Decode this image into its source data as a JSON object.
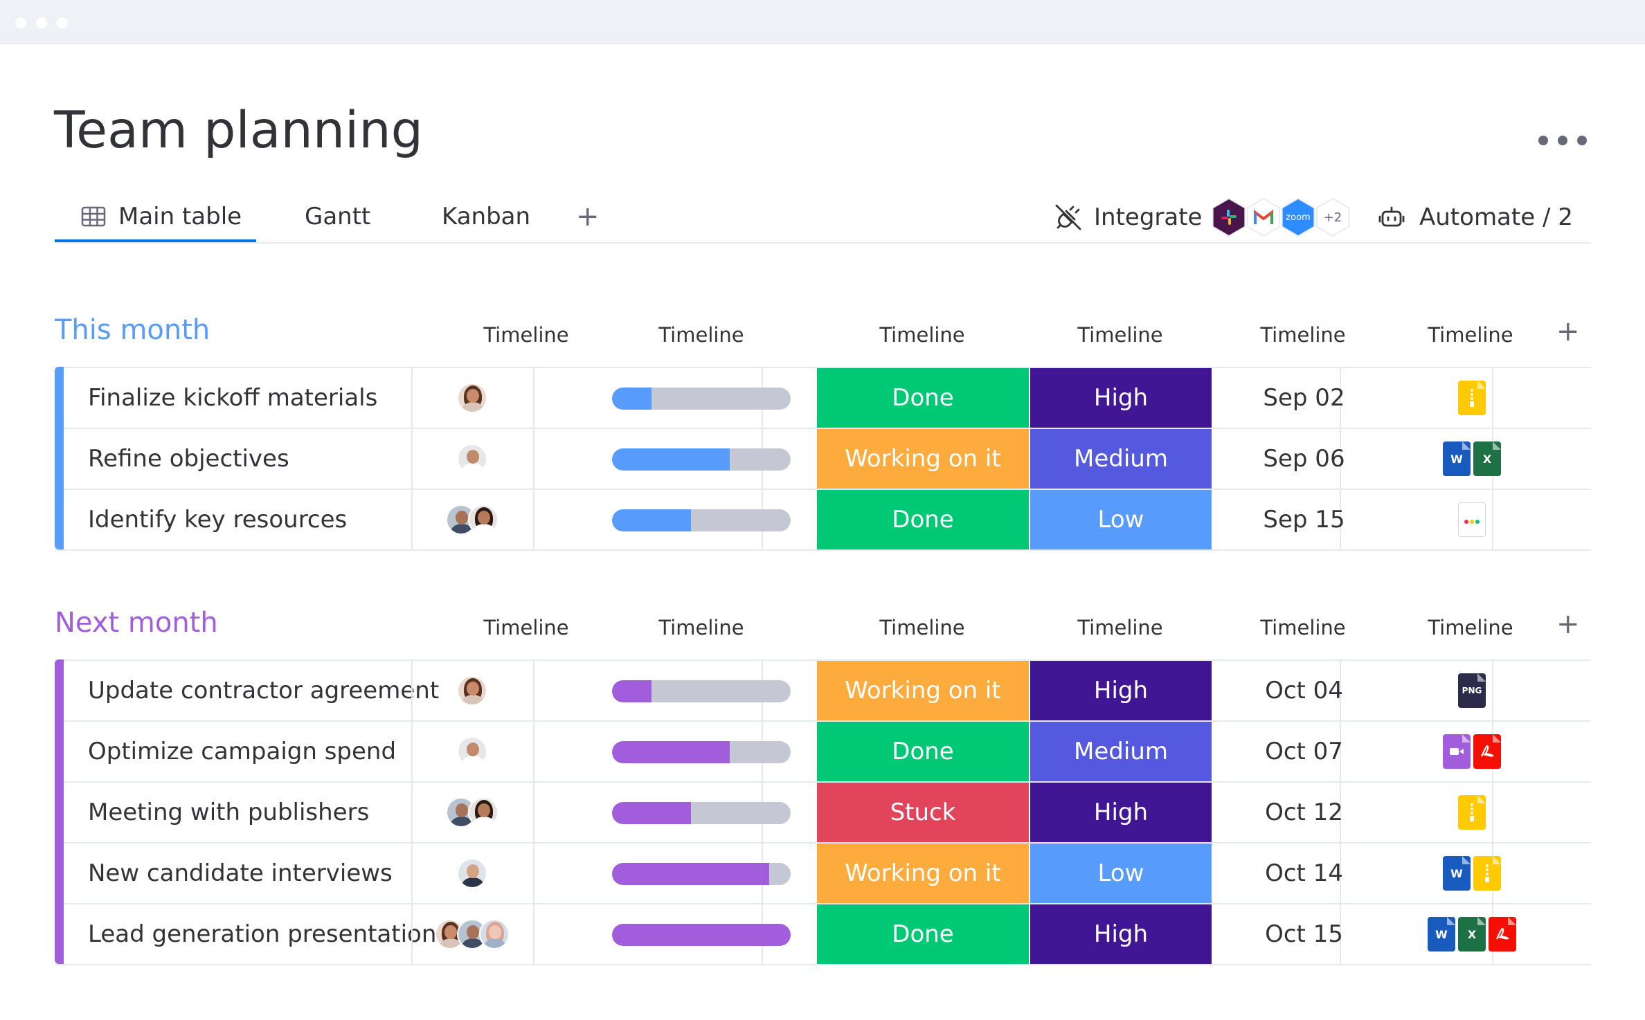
{
  "app": {
    "title": "Team planning"
  },
  "tabs": [
    {
      "label": "Main table",
      "active": true
    },
    {
      "label": "Gantt",
      "active": false
    },
    {
      "label": "Kanban",
      "active": false
    }
  ],
  "toolbar": {
    "integrate_label": "Integrate",
    "integration_logos": [
      "slack",
      "gmail",
      "zoom"
    ],
    "zoom_text": "zoom",
    "more_integrations": "+2",
    "automate_label": "Automate / 2"
  },
  "column_headers": [
    "Timeline",
    "Timeline",
    "Timeline",
    "Timeline",
    "Timeline",
    "Timeline"
  ],
  "colors": {
    "this_month": "#579bfc",
    "next_month": "#a25ddc",
    "done": "#00c875",
    "working": "#fdab3d",
    "stuck": "#e2445c",
    "high": "#401694",
    "medium": "#5559df",
    "low": "#579bfc"
  },
  "groups": [
    {
      "title": "This month",
      "color": "#579bfc",
      "rows": [
        {
          "task": "Finalize kickoff materials",
          "people": [
            "woman"
          ],
          "progress": 0.22,
          "status": "Done",
          "status_color": "#00c875",
          "priority": "High",
          "priority_color": "#401694",
          "date": "Sep 02",
          "files": [
            "zip"
          ]
        },
        {
          "task": "Refine objectives",
          "people": [
            "man"
          ],
          "progress": 0.66,
          "status": "Working on it",
          "status_color": "#fdab3d",
          "priority": "Medium",
          "priority_color": "#5559df",
          "date": "Sep 06",
          "files": [
            "word",
            "excel"
          ]
        },
        {
          "task": "Identify key resources",
          "people": [
            "man2",
            "woman2"
          ],
          "progress": 0.44,
          "status": "Done",
          "status_color": "#00c875",
          "priority": "Low",
          "priority_color": "#579bfc",
          "date": "Sep 15",
          "files": [
            "monday"
          ]
        }
      ]
    },
    {
      "title": "Next month",
      "color": "#a25ddc",
      "rows": [
        {
          "task": "Update contractor agreement",
          "people": [
            "woman"
          ],
          "progress": 0.22,
          "status": "Working on it",
          "status_color": "#fdab3d",
          "priority": "High",
          "priority_color": "#401694",
          "date": "Oct 04",
          "files": [
            "png"
          ]
        },
        {
          "task": "Optimize campaign spend",
          "people": [
            "man"
          ],
          "progress": 0.66,
          "status": "Done",
          "status_color": "#00c875",
          "priority": "Medium",
          "priority_color": "#5559df",
          "date": "Oct 07",
          "files": [
            "video",
            "pdf"
          ]
        },
        {
          "task": "Meeting with publishers",
          "people": [
            "man2",
            "woman2"
          ],
          "progress": 0.44,
          "status": "Stuck",
          "status_color": "#e2445c",
          "priority": "High",
          "priority_color": "#401694",
          "date": "Oct 12",
          "files": [
            "zip"
          ]
        },
        {
          "task": "New candidate interviews",
          "people": [
            "man3"
          ],
          "progress": 0.88,
          "status": "Working on it",
          "status_color": "#fdab3d",
          "priority": "Low",
          "priority_color": "#579bfc",
          "date": "Oct 14",
          "files": [
            "word",
            "zip"
          ]
        },
        {
          "task": "Lead generation presentation",
          "people": [
            "woman",
            "man2",
            "woman3"
          ],
          "progress": 1.0,
          "status": "Done",
          "status_color": "#00c875",
          "priority": "High",
          "priority_color": "#401694",
          "date": "Oct 15",
          "files": [
            "word",
            "excel",
            "pdf"
          ]
        }
      ]
    }
  ],
  "file_labels": {
    "word": "W",
    "excel": "X",
    "png": "PNG"
  }
}
